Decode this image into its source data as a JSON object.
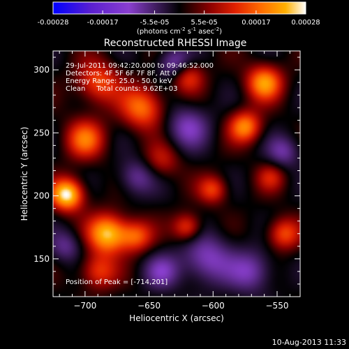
{
  "colorbar": {
    "ticks": [
      "-0.00028",
      "-0.00017",
      "-5.5e-05",
      "5.5e-05",
      "0.00017",
      "0.00028"
    ],
    "units": "(photons cm",
    "units_exp1": "-2",
    "units_mid": " s",
    "units_exp2": "-1",
    "units_end": " asec",
    "units_exp3": "-2",
    "units_close": ")"
  },
  "chart_data": {
    "type": "heatmap",
    "title": "Reconstructed RHESSI Image",
    "xlabel": "Heliocentric X (arcsec)",
    "ylabel": "Heliocentric Y (arcsec)",
    "xlim": [
      -725,
      -532
    ],
    "ylim": [
      120,
      315
    ],
    "xticks": [
      -700,
      -650,
      -600,
      -550
    ],
    "xtick_labels": [
      "−700",
      "−650",
      "−600",
      "−550"
    ],
    "yticks": [
      150,
      200,
      250,
      300
    ],
    "ytick_labels": [
      "150",
      "200",
      "250",
      "300"
    ],
    "zlim": [
      -0.00028,
      0.00028
    ],
    "colormap": [
      "#0000ff",
      "#5a1fcf",
      "#8a3fcf",
      "#000000",
      "#8b0000",
      "#e02000",
      "#ff6a00",
      "#ffb000",
      "#ffffff"
    ],
    "annotations": [
      "29-Jul-2011 09:42:20.000 to 09:46:52.000",
      "Detectors: 4F 5F 6F 7F 8F, Att 0",
      "Energy Range: 25.0 - 50.0 keV",
      "Clean     Total counts: 9.62E+03"
    ],
    "peak_label": "Position of Peak = [-714,201]",
    "peak": [
      -714,
      201
    ],
    "sources": [
      {
        "x": -714,
        "y": 201,
        "amp": 1.0,
        "s": 9
      },
      {
        "x": -682,
        "y": 170,
        "amp": 0.9,
        "s": 11
      },
      {
        "x": -660,
        "y": 168,
        "amp": 0.55,
        "s": 9
      },
      {
        "x": -560,
        "y": 290,
        "amp": 0.75,
        "s": 10
      },
      {
        "x": -575,
        "y": 255,
        "amp": 0.7,
        "s": 9
      },
      {
        "x": -655,
        "y": 270,
        "amp": 0.65,
        "s": 12
      },
      {
        "x": -700,
        "y": 245,
        "amp": 0.6,
        "s": 11
      },
      {
        "x": -620,
        "y": 175,
        "amp": 0.55,
        "s": 8
      },
      {
        "x": -600,
        "y": 205,
        "amp": 0.5,
        "s": 8
      },
      {
        "x": -690,
        "y": 290,
        "amp": 0.55,
        "s": 12
      },
      {
        "x": -620,
        "y": 295,
        "amp": 0.5,
        "s": 9
      },
      {
        "x": -545,
        "y": 170,
        "amp": 0.55,
        "s": 9
      },
      {
        "x": -690,
        "y": 140,
        "amp": 0.5,
        "s": 10
      },
      {
        "x": -640,
        "y": 228,
        "amp": 0.35,
        "s": 10
      },
      {
        "x": -555,
        "y": 215,
        "amp": 0.35,
        "s": 8
      },
      {
        "x": -620,
        "y": 255,
        "amp": -0.45,
        "s": 12
      },
      {
        "x": -605,
        "y": 150,
        "amp": -0.5,
        "s": 14
      },
      {
        "x": -570,
        "y": 140,
        "amp": -0.45,
        "s": 12
      },
      {
        "x": -630,
        "y": 305,
        "amp": -0.5,
        "s": 9
      },
      {
        "x": -660,
        "y": 215,
        "amp": -0.4,
        "s": 10
      },
      {
        "x": -715,
        "y": 160,
        "amp": -0.35,
        "s": 9
      },
      {
        "x": -545,
        "y": 235,
        "amp": -0.4,
        "s": 9
      },
      {
        "x": -640,
        "y": 140,
        "amp": -0.4,
        "s": 10
      }
    ]
  },
  "footer": {
    "timestamp": "10-Aug-2013 11:33"
  }
}
